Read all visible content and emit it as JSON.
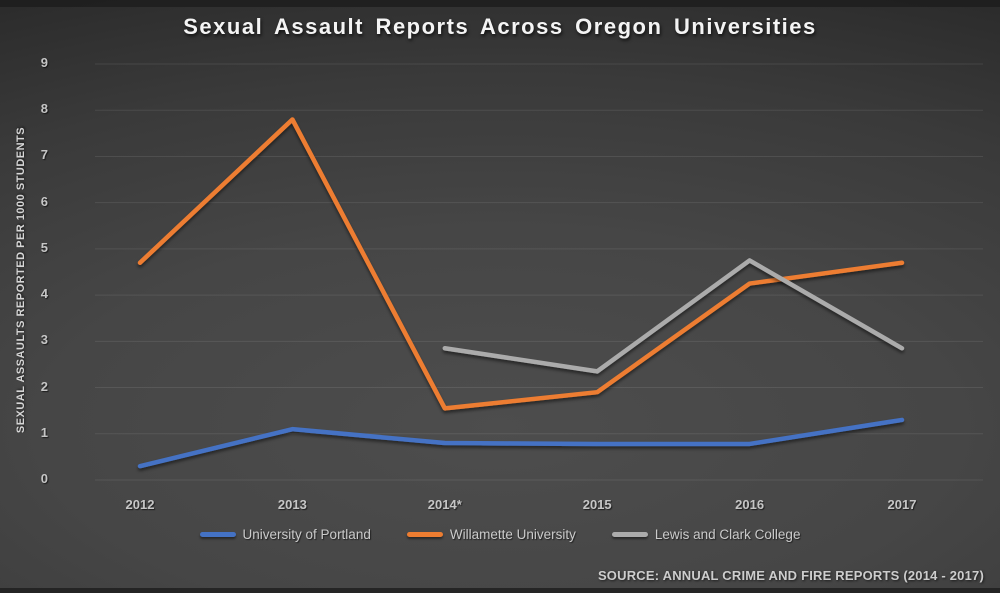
{
  "title": "Sexual Assault Reports Across Oregon Universities",
  "y_axis_title": "SEXUAL ASSAULTS REPORTED PER 1000 STUDENTS",
  "source_note": "SOURCE: ANNUAL CRIME AND FIRE REPORTS (2014 - 2017)",
  "colors": {
    "background_center": "#4d4d4d",
    "background_edge": "#232323",
    "gridline": "rgba(255,255,255,0.09)",
    "tick_text": "#c6c6c6",
    "title_text": "#f4f4f4"
  },
  "chart_data": {
    "type": "line",
    "title": "Sexual Assault Reports Across Oregon Universities",
    "xlabel": "",
    "ylabel": "SEXUAL ASSAULTS REPORTED PER 1000 STUDENTS",
    "categories": [
      "2012",
      "2013",
      "2014*",
      "2015",
      "2016",
      "2017"
    ],
    "series": [
      {
        "name": "University of Portland",
        "color": "#4472C4",
        "values": [
          0.3,
          1.1,
          0.8,
          0.78,
          0.78,
          1.3
        ]
      },
      {
        "name": "Willamette University",
        "color": "#ED7D31",
        "values": [
          4.7,
          7.8,
          1.55,
          1.9,
          4.25,
          4.7
        ]
      },
      {
        "name": "Lewis and Clark College",
        "color": "#ABABAB",
        "values": [
          null,
          null,
          2.85,
          2.35,
          4.75,
          2.85
        ]
      }
    ],
    "ylim": [
      0,
      9
    ],
    "yticks": [
      0,
      1,
      2,
      3,
      4,
      5,
      6,
      7,
      8,
      9
    ],
    "grid": true,
    "legend_position": "bottom"
  }
}
